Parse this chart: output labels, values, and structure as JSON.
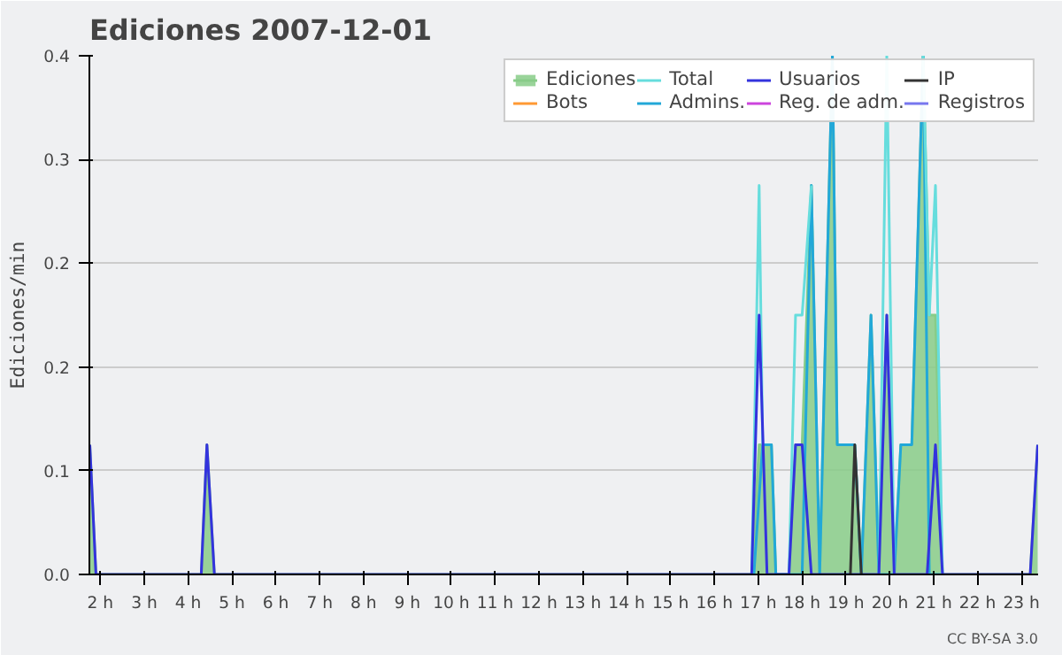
{
  "chart_data": {
    "type": "line",
    "title": "Ediciones  2007-12-01",
    "ylabel": "Ediciones/min",
    "annotations": [
      "CC BY-SA 3.0"
    ],
    "xlim": [
      1.75,
      23.38
    ],
    "xticks": [
      {
        "value": 2,
        "label": "2 h"
      },
      {
        "value": 3,
        "label": "3 h"
      },
      {
        "value": 4,
        "label": "4 h"
      },
      {
        "value": 5,
        "label": "5 h"
      },
      {
        "value": 6,
        "label": "6 h"
      },
      {
        "value": 7,
        "label": "7 h"
      },
      {
        "value": 8,
        "label": "8 h"
      },
      {
        "value": 9,
        "label": "9 h"
      },
      {
        "value": 10,
        "label": "10 h"
      },
      {
        "value": 11,
        "label": "11 h"
      },
      {
        "value": 12,
        "label": "12 h"
      },
      {
        "value": 13,
        "label": "13 h"
      },
      {
        "value": 14,
        "label": "14 h"
      },
      {
        "value": 15,
        "label": "15 h"
      },
      {
        "value": 16,
        "label": "16 h"
      },
      {
        "value": 17,
        "label": "17 h"
      },
      {
        "value": 18,
        "label": "18 h"
      },
      {
        "value": 19,
        "label": "19 h"
      },
      {
        "value": 20,
        "label": "20 h"
      },
      {
        "value": 21,
        "label": "21 h"
      },
      {
        "value": 22,
        "label": "22 h"
      },
      {
        "value": 23,
        "label": "23 h"
      }
    ],
    "ylim": [
      0,
      0.4
    ],
    "yticks": [
      {
        "value": 0,
        "label": "0.0"
      },
      {
        "value": 0.08,
        "label": "0.1"
      },
      {
        "value": 0.16,
        "label": "0.2"
      },
      {
        "value": 0.24,
        "label": "0.2"
      },
      {
        "value": 0.32,
        "label": "0.3"
      },
      0.4
    ],
    "grid": "y",
    "legend": "top right",
    "line_style": "solid",
    "series": [
      {
        "name": "Ediciones",
        "type": "area",
        "color": "#88cc88",
        "x": [
          1.76,
          1.9,
          4.3,
          4.43,
          4.6,
          16.85,
          17.02,
          17.1,
          17.3,
          17.4,
          17.7,
          17.85,
          18.0,
          18.21,
          18.4,
          18.69,
          18.8,
          19.2,
          19.35,
          19.57,
          19.75,
          19.93,
          20.1,
          20.25,
          20.5,
          20.76,
          20.9,
          21.04,
          21.2,
          23.2,
          23.37
        ],
        "values": [
          0.1,
          0,
          0,
          0.1,
          0,
          0,
          0.1,
          0.1,
          0.1,
          0,
          0,
          0.1,
          0.1,
          0.3,
          0,
          0.4,
          0.1,
          0.1,
          0,
          0.2,
          0,
          0.2,
          0,
          0.1,
          0.1,
          0.4,
          0.2,
          0.2,
          0,
          0,
          0.1
        ]
      },
      {
        "name": "Total",
        "color": "#66dddd",
        "x": [
          16.85,
          17.02,
          17.1,
          17.3,
          17.7,
          17.85,
          18.0,
          18.21,
          18.4,
          19.75,
          19.93,
          20.1,
          20.5,
          20.76,
          20.9,
          21.04,
          21.2
        ],
        "values": [
          0,
          0.3,
          0.1,
          null,
          0,
          0.2,
          0.2,
          0.3,
          null,
          0,
          0.4,
          0,
          null,
          0.4,
          0.2,
          0.3,
          0
        ]
      },
      {
        "name": "Usuarios",
        "color": "#3333dd",
        "x": [
          1.76,
          1.9,
          4.3,
          4.43,
          4.6,
          16.85,
          17.02,
          17.2,
          17.7,
          17.85,
          18.0,
          18.21,
          19.75,
          19.93,
          20.1,
          20.85,
          21.04,
          21.2,
          23.2,
          23.37
        ],
        "values": [
          0.1,
          0,
          0,
          0.1,
          0,
          0,
          0.2,
          0,
          0,
          0.1,
          0.1,
          0,
          0,
          0.2,
          0,
          0,
          0.1,
          0,
          0,
          0.1
        ]
      },
      {
        "name": "IP",
        "color": "#333333",
        "x": [
          19.1,
          19.2,
          19.35
        ],
        "values": [
          0,
          0.1,
          0
        ]
      },
      {
        "name": "Bots",
        "color": "#ff9933",
        "values": [
          null,
          null
        ]
      },
      {
        "name": "Admins.",
        "color": "#22a8d8",
        "x": [
          16.9,
          17.1,
          17.3,
          17.4,
          18.0,
          18.21,
          18.4,
          18.69,
          18.8,
          19.2,
          19.35,
          19.57,
          19.75,
          20.1,
          20.25,
          20.5,
          20.76,
          20.9,
          21.2
        ],
        "values": [
          0,
          0.1,
          0.1,
          0,
          0,
          0.3,
          0,
          0.4,
          0.1,
          0.1,
          0,
          0.2,
          0,
          0,
          0.1,
          0.1,
          0.4,
          0,
          0
        ]
      },
      {
        "name": "Reg. de adm.",
        "color": "#cc44dd",
        "values": [
          null,
          null
        ]
      },
      {
        "name": "Registros",
        "color": "#7777ee",
        "values": [
          null,
          null
        ]
      }
    ]
  }
}
